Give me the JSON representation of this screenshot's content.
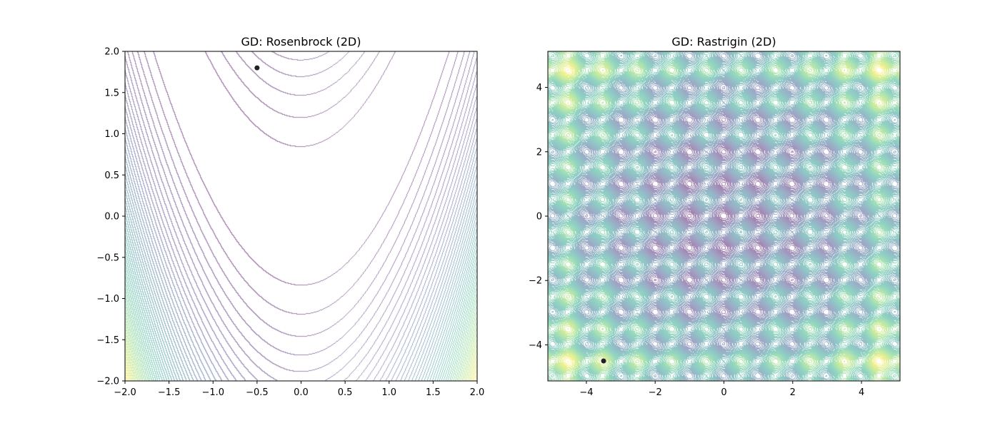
{
  "chart_data": [
    {
      "type": "contour",
      "function": "rosenbrock",
      "title": "GD: Rosenbrock (2D)",
      "xlabel": "",
      "ylabel": "",
      "xlim": [
        -2.0,
        2.0
      ],
      "ylim": [
        -2.0,
        2.0
      ],
      "xticks": [
        -2.0,
        -1.5,
        -1.0,
        -0.5,
        0.0,
        0.5,
        1.0,
        1.5,
        2.0
      ],
      "xtick_labels": [
        "−2.0",
        "−1.5",
        "−1.0",
        "−0.5",
        "0.0",
        "0.5",
        "1.0",
        "1.5",
        "2.0"
      ],
      "yticks": [
        -2.0,
        -1.5,
        -1.0,
        -0.5,
        0.0,
        0.5,
        1.0,
        1.5,
        2.0
      ],
      "ytick_labels": [
        "−2.0",
        "−1.5",
        "−1.0",
        "−0.5",
        "0.0",
        "0.5",
        "1.0",
        "1.5",
        "2.0"
      ],
      "colormap": "viridis",
      "alpha": 0.5,
      "marker": {
        "x": -0.5,
        "y": 1.8,
        "color": "#222222"
      }
    },
    {
      "type": "contour",
      "function": "rastrigin",
      "title": "GD: Rastrigin (2D)",
      "xlabel": "",
      "ylabel": "",
      "xlim": [
        -5.12,
        5.12
      ],
      "ylim": [
        -5.12,
        5.12
      ],
      "xticks": [
        -4,
        -2,
        0,
        2,
        4
      ],
      "xtick_labels": [
        "−4",
        "−2",
        "0",
        "2",
        "4"
      ],
      "yticks": [
        -4,
        -2,
        0,
        2,
        4
      ],
      "ytick_labels": [
        "−4",
        "−2",
        "0",
        "2",
        "4"
      ],
      "colormap": "viridis",
      "alpha": 0.5,
      "marker": {
        "x": -3.5,
        "y": -4.5,
        "color": "#222222"
      }
    }
  ]
}
